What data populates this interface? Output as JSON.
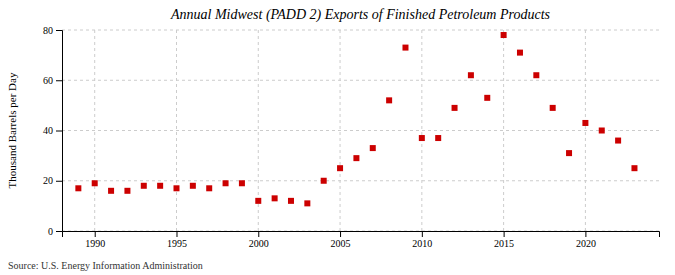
{
  "chart_data": {
    "type": "scatter",
    "title": "Annual Midwest (PADD 2) Exports of Finished Petroleum Products",
    "ylabel": "Thousand Barrels per Day",
    "annotations": [
      "Source: U.S. Energy Information Administration"
    ],
    "x": [
      1989,
      1990,
      1991,
      1992,
      1993,
      1994,
      1995,
      1996,
      1997,
      1998,
      1999,
      2000,
      2001,
      2002,
      2003,
      2004,
      2005,
      2006,
      2007,
      2008,
      2009,
      2010,
      2011,
      2012,
      2013,
      2014,
      2015,
      2016,
      2017,
      2018,
      2019,
      2020,
      2021,
      2022,
      2023
    ],
    "values": [
      17,
      19,
      16,
      16,
      18,
      18,
      17,
      18,
      17,
      19,
      19,
      12,
      13,
      12,
      11,
      20,
      25,
      29,
      33,
      52,
      73,
      37,
      37,
      49,
      62,
      53,
      78,
      71,
      62,
      49,
      31,
      43,
      40,
      36,
      25
    ],
    "color": "#cc0000",
    "marker": "square",
    "xlim": [
      1988.0,
      2024.5
    ],
    "xticks": [
      1990,
      1995,
      2000,
      2005,
      2010,
      2015,
      2020
    ],
    "ylim": [
      0,
      80
    ],
    "yticks": [
      0,
      20,
      40,
      60,
      80
    ],
    "grid": true
  }
}
